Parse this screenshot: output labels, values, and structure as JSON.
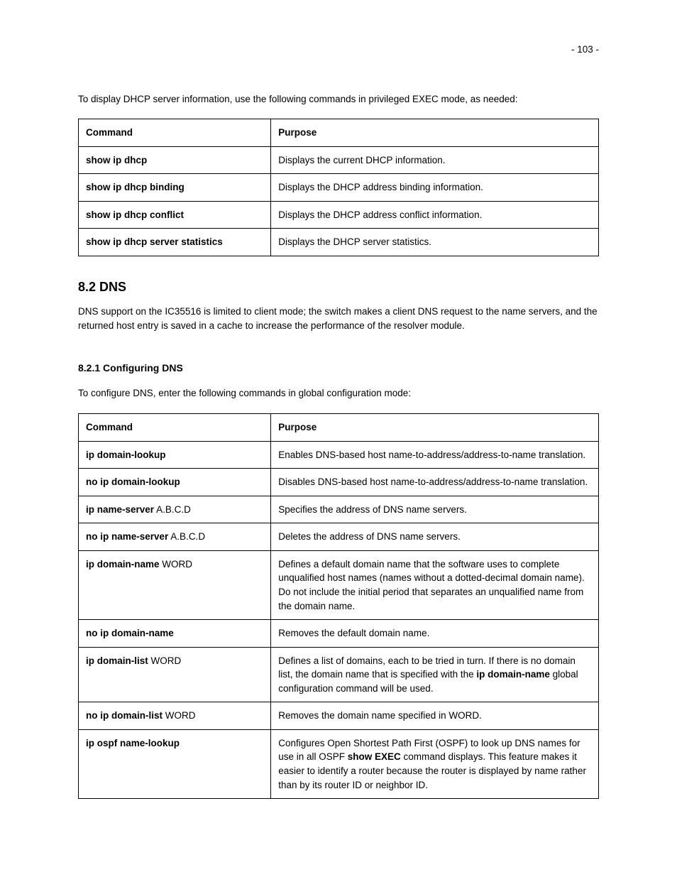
{
  "page_number": "- 103 -",
  "intro1": "To display DHCP server information, use the following commands in privileged EXEC mode, as needed:",
  "table1": {
    "headers": {
      "command": "Command",
      "purpose": "Purpose"
    },
    "rows": [
      {
        "cmd_bold": "show ip dhcp",
        "cmd_normal": "",
        "purpose": "Displays the current DHCP information."
      },
      {
        "cmd_bold": "show ip dhcp binding",
        "cmd_normal": "",
        "purpose": "Displays the DHCP address binding information."
      },
      {
        "cmd_bold": "show ip dhcp conflict",
        "cmd_normal": "",
        "purpose": "Displays the DHCP address conflict information."
      },
      {
        "cmd_bold": "show ip dhcp server statistics",
        "cmd_normal": "",
        "purpose": "Displays the DHCP server statistics."
      }
    ]
  },
  "section_dns": {
    "heading": "8.2 DNS",
    "body": "DNS support on the IC35516 is limited to client mode; the switch makes a client DNS request to the name servers, and the returned host entry is saved in a cache to increase the performance of the resolver module."
  },
  "subsection_config": {
    "heading": "8.2.1 Configuring DNS",
    "intro": "To configure DNS, enter the following commands in global configuration mode:"
  },
  "table2": {
    "headers": {
      "command": "Command",
      "purpose": "Purpose"
    },
    "rows": [
      {
        "cmd_bold": "ip domain-lookup",
        "cmd_normal": "",
        "p1": "Enables DNS-based host name-to-address/address-to-name translation."
      },
      {
        "cmd_bold": "no ip domain-lookup",
        "cmd_normal": "",
        "p1": "Disables DNS-based host name-to-address/address-to-name translation."
      },
      {
        "cmd_bold": "ip name-server",
        "cmd_normal": " A.B.C.D",
        "p1": "Specifies the address of DNS name servers."
      },
      {
        "cmd_bold": "no ip name-server",
        "cmd_normal": " A.B.C.D",
        "p1": "Deletes the address of DNS name servers."
      },
      {
        "cmd_bold": "ip domain-name",
        "cmd_normal": " WORD",
        "p1": "Defines a default domain name that the software uses to complete unqualified host names (names without a dotted-decimal domain name). Do not include the initial period that separates an unqualified name from the domain name."
      },
      {
        "cmd_bold": "no ip domain-name",
        "cmd_normal": "",
        "p1": "Removes the default domain name."
      },
      {
        "cmd_bold": "ip domain-list",
        "cmd_normal": " WORD",
        "p1": "Defines a list of domains, each to be tried in turn. If there is no domain list, the domain name that is specified with the ",
        "pb": "ip domain-name",
        "p2": " global configuration command will be used."
      },
      {
        "cmd_bold": "no ip domain-list",
        "cmd_normal": " WORD",
        "p1": "Removes the domain name specified in WORD."
      },
      {
        "cmd_bold": "ip ospf name-lookup",
        "cmd_normal": "",
        "p1": "Configures Open Shortest Path First (OSPF) to look up DNS names for use in all OSPF ",
        "pb": "show EXEC",
        "p2": " command displays. This feature makes it easier to identify a router because the router is displayed by name rather than by its router ID or neighbor ID."
      }
    ]
  }
}
